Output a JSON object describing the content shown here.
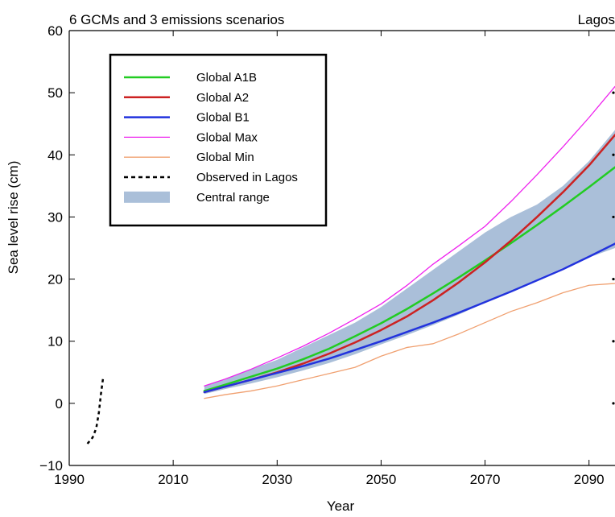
{
  "chart_data": {
    "type": "line",
    "title": "6 GCMs and 3 emissions scenarios",
    "title_right": "Lagos",
    "xlabel": "Year",
    "ylabel": "Sea level rise (cm)",
    "xlim": [
      1990,
      2095
    ],
    "ylim": [
      -10,
      60
    ],
    "xticks": [
      1990,
      2010,
      2030,
      2050,
      2070,
      2090
    ],
    "yticks": [
      -10,
      0,
      10,
      20,
      30,
      40,
      50,
      60
    ],
    "grid": false,
    "legend_position": "top-left",
    "band": {
      "name": "Central range",
      "color": "#aabfd9",
      "x": [
        2016,
        2020,
        2025,
        2030,
        2035,
        2040,
        2045,
        2050,
        2055,
        2060,
        2065,
        2070,
        2075,
        2080,
        2085,
        2090,
        2095
      ],
      "lower": [
        1.5,
        2.3,
        3.2,
        4.2,
        5.3,
        6.5,
        7.9,
        9.5,
        11.0,
        12.6,
        14.3,
        16.2,
        18.1,
        20.0,
        21.8,
        23.5,
        25.0
      ],
      "upper": [
        2.8,
        3.8,
        5.5,
        7.0,
        9.0,
        11.0,
        13.0,
        15.5,
        18.5,
        21.5,
        24.5,
        27.5,
        30.0,
        32.0,
        35.0,
        39.0,
        44.0
      ]
    },
    "series": [
      {
        "name": "Global A1B",
        "color": "#22cc22",
        "width": 2.5,
        "x": [
          2016,
          2020,
          2025,
          2030,
          2035,
          2040,
          2045,
          2050,
          2055,
          2060,
          2065,
          2070,
          2075,
          2080,
          2085,
          2090,
          2095
        ],
        "values": [
          2.0,
          3.0,
          4.3,
          5.6,
          7.1,
          8.8,
          10.8,
          12.9,
          15.2,
          17.7,
          20.3,
          23.0,
          25.8,
          28.7,
          31.7,
          34.8,
          38.0
        ]
      },
      {
        "name": "Global A2",
        "color": "#cc2222",
        "width": 2.5,
        "x": [
          2016,
          2020,
          2025,
          2030,
          2035,
          2040,
          2045,
          2050,
          2055,
          2060,
          2065,
          2070,
          2075,
          2080,
          2085,
          2090,
          2095
        ],
        "values": [
          1.8,
          2.7,
          3.8,
          5.0,
          6.4,
          8.0,
          9.8,
          11.8,
          14.0,
          16.6,
          19.5,
          22.7,
          26.2,
          30.0,
          34.0,
          38.3,
          43.2
        ]
      },
      {
        "name": "Global B1",
        "color": "#2233dd",
        "width": 2.5,
        "x": [
          2016,
          2020,
          2025,
          2030,
          2035,
          2040,
          2045,
          2050,
          2055,
          2060,
          2065,
          2070,
          2075,
          2080,
          2085,
          2090,
          2095
        ],
        "values": [
          1.8,
          2.7,
          3.8,
          4.9,
          6.0,
          7.2,
          8.6,
          10.0,
          11.5,
          13.0,
          14.6,
          16.3,
          18.0,
          19.8,
          21.6,
          23.6,
          25.7
        ]
      },
      {
        "name": "Global Max",
        "color": "#ee22ee",
        "width": 1.3,
        "x": [
          2016,
          2020,
          2025,
          2030,
          2035,
          2040,
          2045,
          2050,
          2055,
          2060,
          2065,
          2070,
          2075,
          2080,
          2085,
          2090,
          2095
        ],
        "values": [
          2.8,
          3.9,
          5.5,
          7.3,
          9.2,
          11.3,
          13.6,
          16.0,
          19.0,
          22.4,
          25.4,
          28.5,
          32.5,
          36.8,
          41.3,
          46.0,
          51.0
        ]
      },
      {
        "name": "Global Min",
        "color": "#f0a070",
        "width": 1.3,
        "x": [
          2016,
          2020,
          2025,
          2030,
          2035,
          2040,
          2045,
          2050,
          2055,
          2060,
          2065,
          2070,
          2075,
          2080,
          2085,
          2090,
          2095
        ],
        "values": [
          0.8,
          1.4,
          2.0,
          2.8,
          3.8,
          4.8,
          5.8,
          7.6,
          9.0,
          9.6,
          11.2,
          13.0,
          14.8,
          16.2,
          17.8,
          19.0,
          19.3
        ]
      },
      {
        "name": "Observed in Lagos",
        "color": "#000000",
        "width": 2.5,
        "dashed": true,
        "x": [
          1993.5,
          1994.5,
          1995.2,
          1995.7,
          1996.1,
          1996.5
        ],
        "values": [
          -6.5,
          -5.5,
          -4.0,
          -1.5,
          1.5,
          4.0
        ]
      }
    ]
  }
}
